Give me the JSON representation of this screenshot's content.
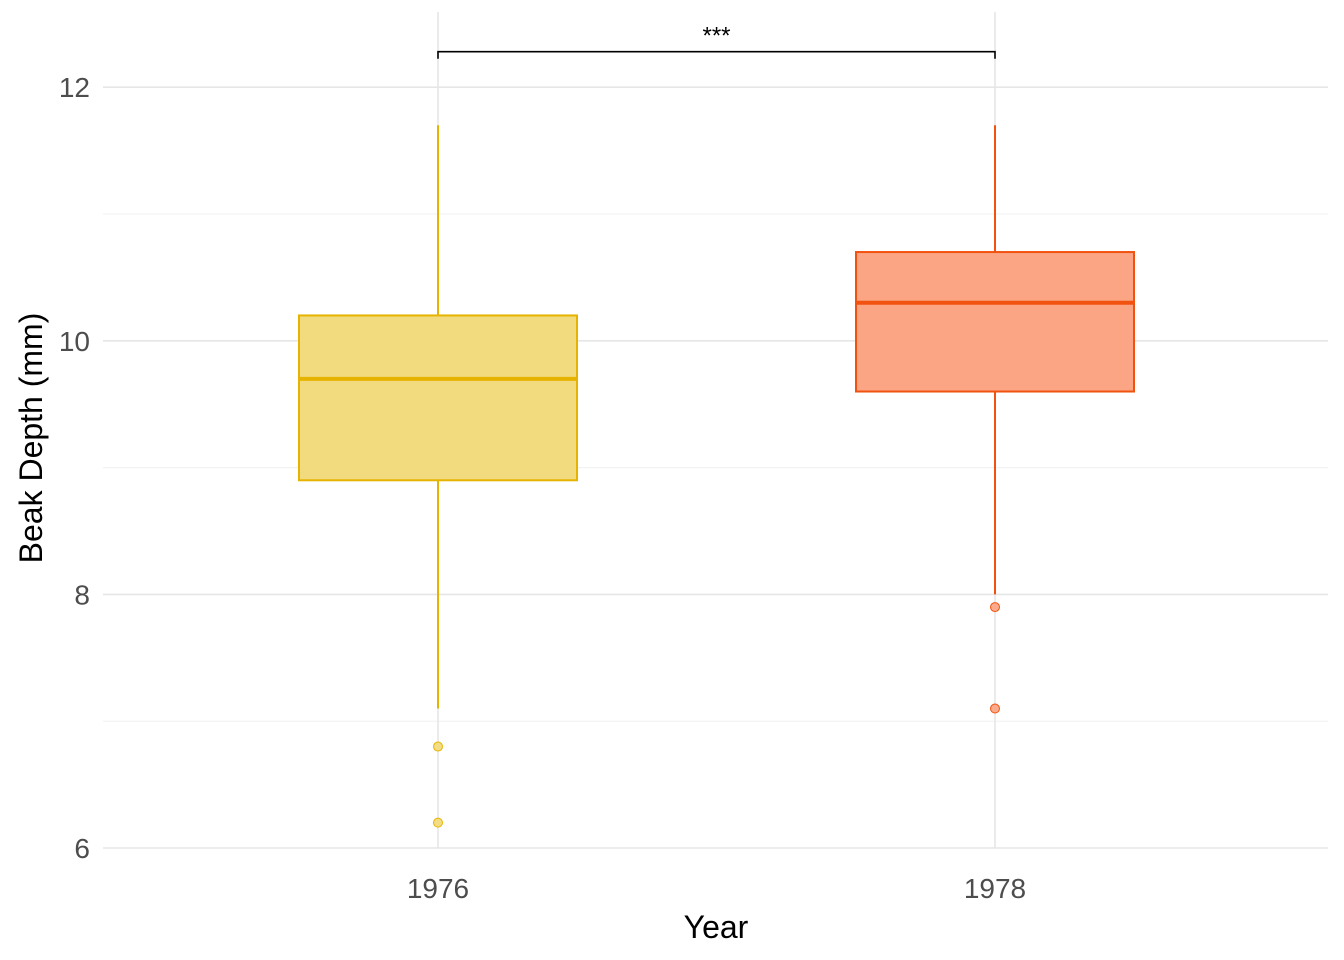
{
  "chart_data": {
    "type": "box",
    "xlabel": "Year",
    "ylabel": "Beak Depth (mm)",
    "categories": [
      "1976",
      "1978"
    ],
    "ylim": [
      5.95,
      12.55
    ],
    "yticks": [
      6,
      8,
      10,
      12
    ],
    "yticks_labels": [
      "6",
      "8",
      "10",
      "12"
    ],
    "grid": true,
    "boxes": [
      {
        "category": "1976",
        "whisker_low": 7.1,
        "q1": 8.9,
        "median": 9.7,
        "q3": 10.2,
        "whisker_high": 11.7,
        "outliers": [
          6.8,
          6.2
        ],
        "color": "#E6B400",
        "fill": "#F2DA7E"
      },
      {
        "category": "1978",
        "whisker_low": 8.0,
        "q1": 9.6,
        "median": 10.3,
        "q3": 10.7,
        "whisker_high": 11.7,
        "outliers": [
          7.9,
          7.1
        ],
        "color": "#F2520F",
        "fill": "#FBA585"
      }
    ],
    "significance": {
      "from": "1976",
      "to": "1978",
      "y": 12.28,
      "label": "***"
    }
  }
}
